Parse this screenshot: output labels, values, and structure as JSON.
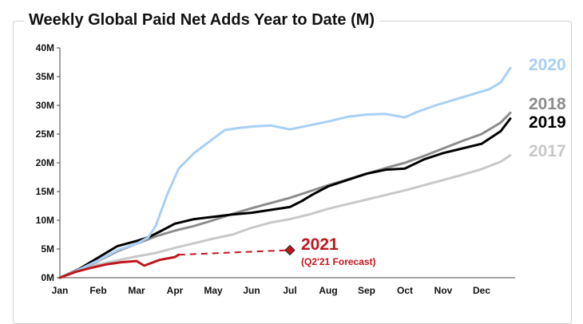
{
  "chart_data": {
    "type": "line",
    "title": "Weekly Global Paid Net Adds Year to Date (M)",
    "xlabel": "",
    "ylabel": "",
    "x_domain": [
      1,
      12.5
    ],
    "ylim": [
      0,
      40
    ],
    "grid": false,
    "legend": "right, at line ends",
    "yticks": [
      {
        "value": 0,
        "label": "0M"
      },
      {
        "value": 5,
        "label": "5M"
      },
      {
        "value": 10,
        "label": "10M"
      },
      {
        "value": 15,
        "label": "15M"
      },
      {
        "value": 20,
        "label": "20M"
      },
      {
        "value": 25,
        "label": "25M"
      },
      {
        "value": 30,
        "label": "30M"
      },
      {
        "value": 35,
        "label": "35M"
      },
      {
        "value": 40,
        "label": "40M"
      }
    ],
    "xticks": [
      {
        "value": 1,
        "label": "Jan"
      },
      {
        "value": 2,
        "label": "Feb"
      },
      {
        "value": 3,
        "label": "Mar"
      },
      {
        "value": 4,
        "label": "Apr"
      },
      {
        "value": 5,
        "label": "May"
      },
      {
        "value": 6,
        "label": "Jun"
      },
      {
        "value": 7,
        "label": "Jul"
      },
      {
        "value": 8,
        "label": "Aug"
      },
      {
        "value": 9,
        "label": "Sep"
      },
      {
        "value": 10,
        "label": "Oct"
      },
      {
        "value": 11,
        "label": "Nov"
      },
      {
        "value": 12,
        "label": "Dec"
      }
    ],
    "series": [
      {
        "name": "2017",
        "color": "#c8c8c8",
        "width": 3,
        "points": [
          [
            1,
            0
          ],
          [
            1.5,
            1.2
          ],
          [
            2,
            2.3
          ],
          [
            2.5,
            3.0
          ],
          [
            3,
            3.7
          ],
          [
            3.5,
            4.3
          ],
          [
            4,
            5.2
          ],
          [
            4.5,
            6.0
          ],
          [
            5,
            6.8
          ],
          [
            5.5,
            7.5
          ],
          [
            6,
            8.7
          ],
          [
            6.5,
            9.6
          ],
          [
            7,
            10.2
          ],
          [
            7.5,
            11.0
          ],
          [
            8,
            12.0
          ],
          [
            8.5,
            12.8
          ],
          [
            9,
            13.6
          ],
          [
            9.5,
            14.4
          ],
          [
            10,
            15.2
          ],
          [
            10.5,
            16.1
          ],
          [
            11,
            17.0
          ],
          [
            11.5,
            17.9
          ],
          [
            12,
            18.9
          ],
          [
            12.5,
            20.2
          ],
          [
            12.75,
            21.3
          ]
        ]
      },
      {
        "name": "2018",
        "color": "#8c8c8c",
        "width": 3,
        "points": [
          [
            1,
            0
          ],
          [
            1.5,
            1.3
          ],
          [
            2,
            2.9
          ],
          [
            2.5,
            4.6
          ],
          [
            3,
            5.9
          ],
          [
            3.5,
            7.2
          ],
          [
            4,
            8.2
          ],
          [
            4.5,
            9.0
          ],
          [
            5,
            10.0
          ],
          [
            5.5,
            11.1
          ],
          [
            6,
            12.1
          ],
          [
            6.5,
            13.0
          ],
          [
            7,
            13.9
          ],
          [
            7.5,
            15.0
          ],
          [
            8,
            16.1
          ],
          [
            8.5,
            17.1
          ],
          [
            9,
            18.1
          ],
          [
            9.5,
            19.1
          ],
          [
            10,
            20.0
          ],
          [
            10.5,
            21.2
          ],
          [
            11,
            22.5
          ],
          [
            11.5,
            23.8
          ],
          [
            12,
            25.0
          ],
          [
            12.5,
            27.0
          ],
          [
            12.75,
            28.7
          ]
        ]
      },
      {
        "name": "2019",
        "color": "#000000",
        "width": 3,
        "points": [
          [
            1,
            0
          ],
          [
            1.5,
            1.5
          ],
          [
            2,
            3.5
          ],
          [
            2.5,
            5.5
          ],
          [
            3,
            6.4
          ],
          [
            3.3,
            7.0
          ],
          [
            3.6,
            8.0
          ],
          [
            4,
            9.4
          ],
          [
            4.5,
            10.2
          ],
          [
            5,
            10.6
          ],
          [
            5.5,
            11.0
          ],
          [
            6,
            11.3
          ],
          [
            6.5,
            11.8
          ],
          [
            7,
            12.3
          ],
          [
            7.3,
            13.3
          ],
          [
            7.6,
            14.5
          ],
          [
            8,
            15.9
          ],
          [
            8.5,
            17.0
          ],
          [
            9,
            18.1
          ],
          [
            9.5,
            18.8
          ],
          [
            10,
            19.0
          ],
          [
            10.5,
            20.6
          ],
          [
            11,
            21.7
          ],
          [
            11.5,
            22.5
          ],
          [
            12,
            23.3
          ],
          [
            12.5,
            25.5
          ],
          [
            12.75,
            27.7
          ]
        ]
      },
      {
        "name": "2020",
        "color": "#a8d0f5",
        "width": 3,
        "points": [
          [
            1,
            0
          ],
          [
            1.5,
            1.4
          ],
          [
            2,
            3.0
          ],
          [
            2.5,
            4.8
          ],
          [
            3,
            5.9
          ],
          [
            3.3,
            7.0
          ],
          [
            3.5,
            9.0
          ],
          [
            3.8,
            14.5
          ],
          [
            4.1,
            19.0
          ],
          [
            4.5,
            21.7
          ],
          [
            5,
            24.2
          ],
          [
            5.3,
            25.7
          ],
          [
            5.6,
            26.0
          ],
          [
            6,
            26.3
          ],
          [
            6.5,
            26.5
          ],
          [
            7,
            25.8
          ],
          [
            7.5,
            26.5
          ],
          [
            8,
            27.2
          ],
          [
            8.5,
            28.0
          ],
          [
            9,
            28.4
          ],
          [
            9.5,
            28.5
          ],
          [
            10,
            27.9
          ],
          [
            10.3,
            28.8
          ],
          [
            10.8,
            30.0
          ],
          [
            11.3,
            31.0
          ],
          [
            11.8,
            32.0
          ],
          [
            12.2,
            32.8
          ],
          [
            12.5,
            34.0
          ],
          [
            12.75,
            36.5
          ]
        ]
      },
      {
        "name": "2021",
        "color": "#c0161e",
        "width": 3,
        "points": [
          [
            1,
            0
          ],
          [
            1.4,
            1.0
          ],
          [
            1.8,
            1.7
          ],
          [
            2.2,
            2.3
          ],
          [
            2.6,
            2.7
          ],
          [
            3,
            2.9
          ],
          [
            3.2,
            2.1
          ],
          [
            3.6,
            3.1
          ],
          [
            4,
            3.6
          ],
          [
            4.1,
            4.0
          ]
        ]
      }
    ],
    "forecast": {
      "color": "#c0161e",
      "points": [
        [
          4.1,
          4.0
        ],
        [
          7.0,
          4.8
        ]
      ],
      "marker": [
        7.0,
        4.8
      ],
      "label": "(Q2'21 Forecast)"
    },
    "end_labels": [
      {
        "series": "2020",
        "text": "2020",
        "color": "#a8d0f5"
      },
      {
        "series": "2018",
        "text": "2018",
        "color": "#8c8c8c"
      },
      {
        "series": "2019",
        "text": "2019",
        "color": "#000000"
      },
      {
        "series": "2017",
        "text": "2017",
        "color": "#c8c8c8"
      },
      {
        "series": "2021",
        "text": "2021",
        "color": "#c0161e"
      }
    ]
  }
}
